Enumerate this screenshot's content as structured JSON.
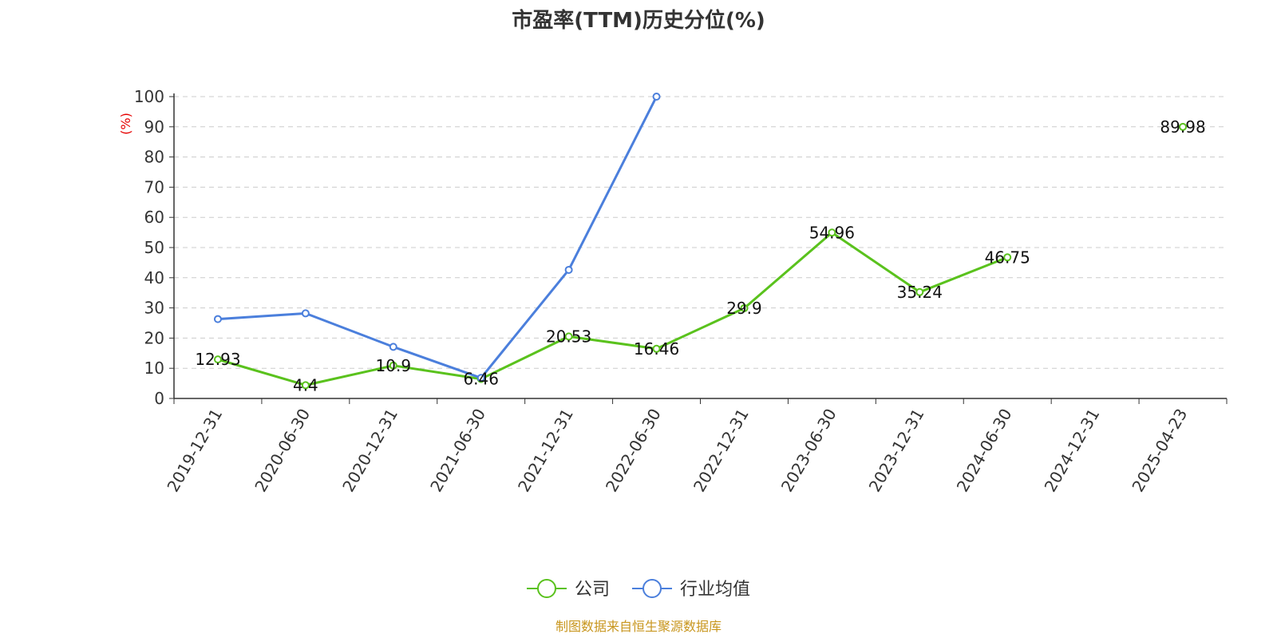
{
  "chart_data": {
    "type": "line",
    "title": "市盈率(TTM)历史分位(%)",
    "ylabel": "(%)",
    "xlabel": "",
    "ylim": [
      0,
      100
    ],
    "yticks": [
      0,
      10,
      20,
      30,
      40,
      50,
      60,
      70,
      80,
      90,
      100
    ],
    "categories": [
      "2019-12-31",
      "2020-06-30",
      "2020-12-31",
      "2021-06-30",
      "2021-12-31",
      "2022-06-30",
      "2022-12-31",
      "2023-06-30",
      "2023-12-31",
      "2024-06-30",
      "2024-12-31",
      "2025-04-23"
    ],
    "grid": true,
    "legend_position": "bottom",
    "series": [
      {
        "name": "公司",
        "color": "#5ac21d",
        "values": [
          12.93,
          4.4,
          10.9,
          6.46,
          20.53,
          16.46,
          29.9,
          54.96,
          35.24,
          46.75,
          null,
          89.98
        ],
        "labels": [
          "12.93",
          "4.4",
          "10.9",
          "6.46",
          "20.53",
          "16.46",
          "29.9",
          "54.96",
          "35.24",
          "46.75",
          "",
          "89.98"
        ]
      },
      {
        "name": "行业均值",
        "color": "#4b7fdc",
        "values": [
          26.3,
          28.2,
          17.1,
          6.8,
          42.6,
          100,
          null,
          null,
          null,
          null,
          null,
          null
        ],
        "labels": []
      }
    ],
    "source": "制图数据来自恒生聚源数据库"
  }
}
